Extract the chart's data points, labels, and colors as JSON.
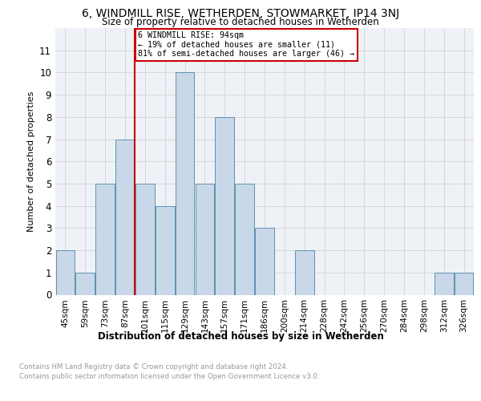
{
  "title1": "6, WINDMILL RISE, WETHERDEN, STOWMARKET, IP14 3NJ",
  "title2": "Size of property relative to detached houses in Wetherden",
  "xlabel": "Distribution of detached houses by size in Wetherden",
  "ylabel": "Number of detached properties",
  "categories": [
    "45sqm",
    "59sqm",
    "73sqm",
    "87sqm",
    "101sqm",
    "115sqm",
    "129sqm",
    "143sqm",
    "157sqm",
    "171sqm",
    "186sqm",
    "200sqm",
    "214sqm",
    "228sqm",
    "242sqm",
    "256sqm",
    "270sqm",
    "284sqm",
    "298sqm",
    "312sqm",
    "326sqm"
  ],
  "values": [
    2,
    1,
    5,
    7,
    5,
    4,
    10,
    5,
    8,
    5,
    3,
    0,
    2,
    0,
    0,
    0,
    0,
    0,
    0,
    1,
    1
  ],
  "bar_color": "#c8d8e8",
  "bar_edge_color": "#6090b0",
  "vline_x": 3.5,
  "vline_color": "#cc0000",
  "annotation_text": "6 WINDMILL RISE: 94sqm\n← 19% of detached houses are smaller (11)\n81% of semi-detached houses are larger (46) →",
  "annotation_box_color": "#ffffff",
  "annotation_box_edge": "#cc0000",
  "ylim": [
    0,
    12
  ],
  "yticks": [
    0,
    1,
    2,
    3,
    4,
    5,
    6,
    7,
    8,
    9,
    10,
    11
  ],
  "footer1": "Contains HM Land Registry data © Crown copyright and database right 2024.",
  "footer2": "Contains public sector information licensed under the Open Government Licence v3.0.",
  "plot_bg_color": "#eef2f7"
}
